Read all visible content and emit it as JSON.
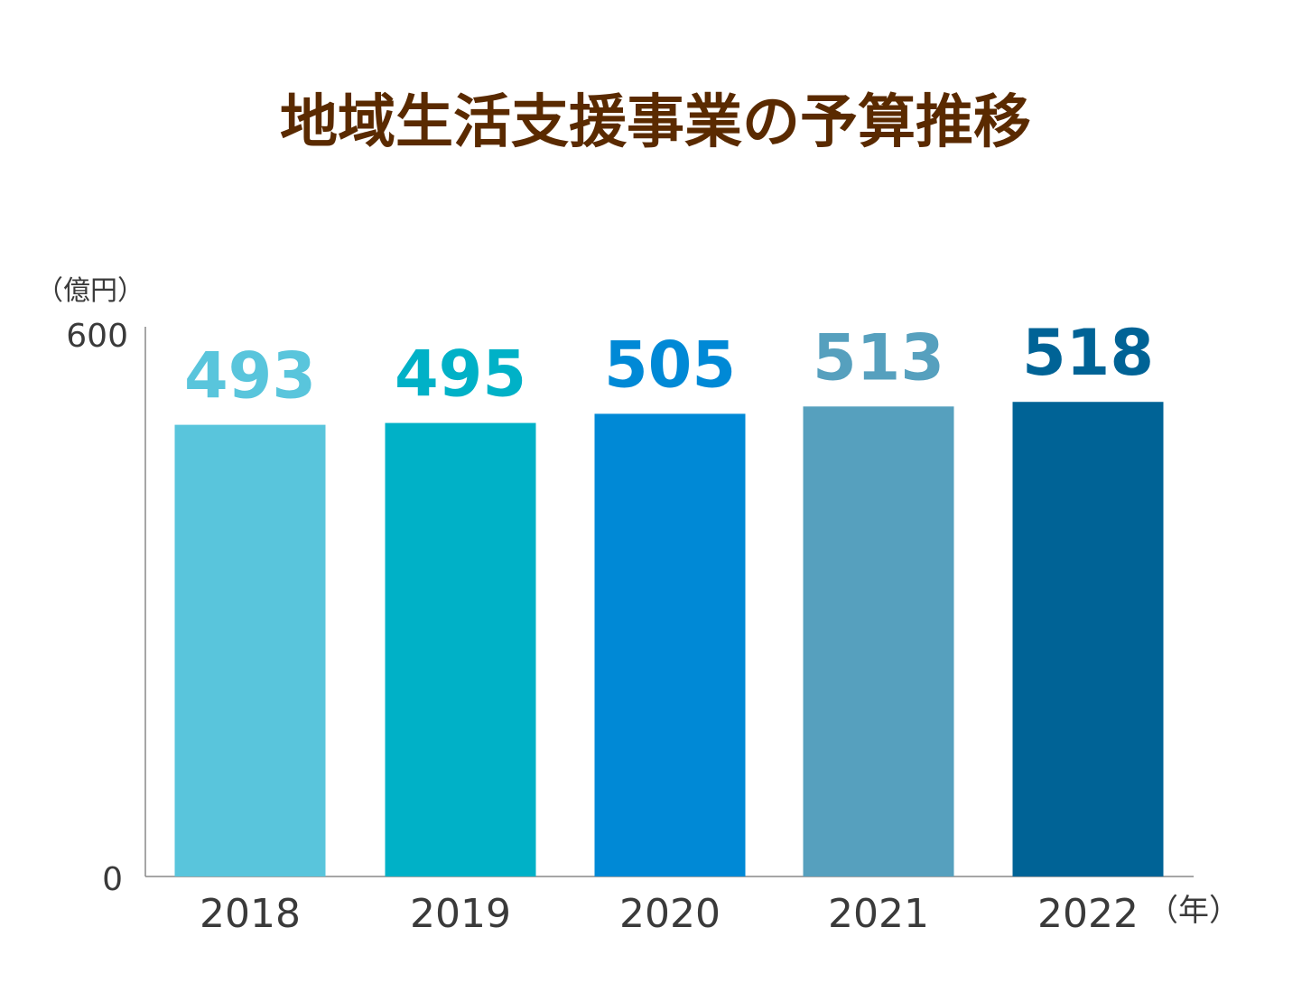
{
  "chart_data": {
    "type": "bar",
    "title": "地域生活支援事業の予算推移",
    "ylabel": "（億円）",
    "xlabel": "（年）",
    "categories": [
      "2018",
      "2019",
      "2020",
      "2021",
      "2022"
    ],
    "values": [
      493,
      495,
      505,
      513,
      518
    ],
    "ylim": [
      0,
      600
    ],
    "y_ticks": [
      "0",
      "600"
    ],
    "bar_colors": [
      "#59c5dc",
      "#00b1c7",
      "#0089d6",
      "#56a0be",
      "#006396"
    ],
    "grid": false,
    "legend": "none",
    "data_labels": true
  }
}
